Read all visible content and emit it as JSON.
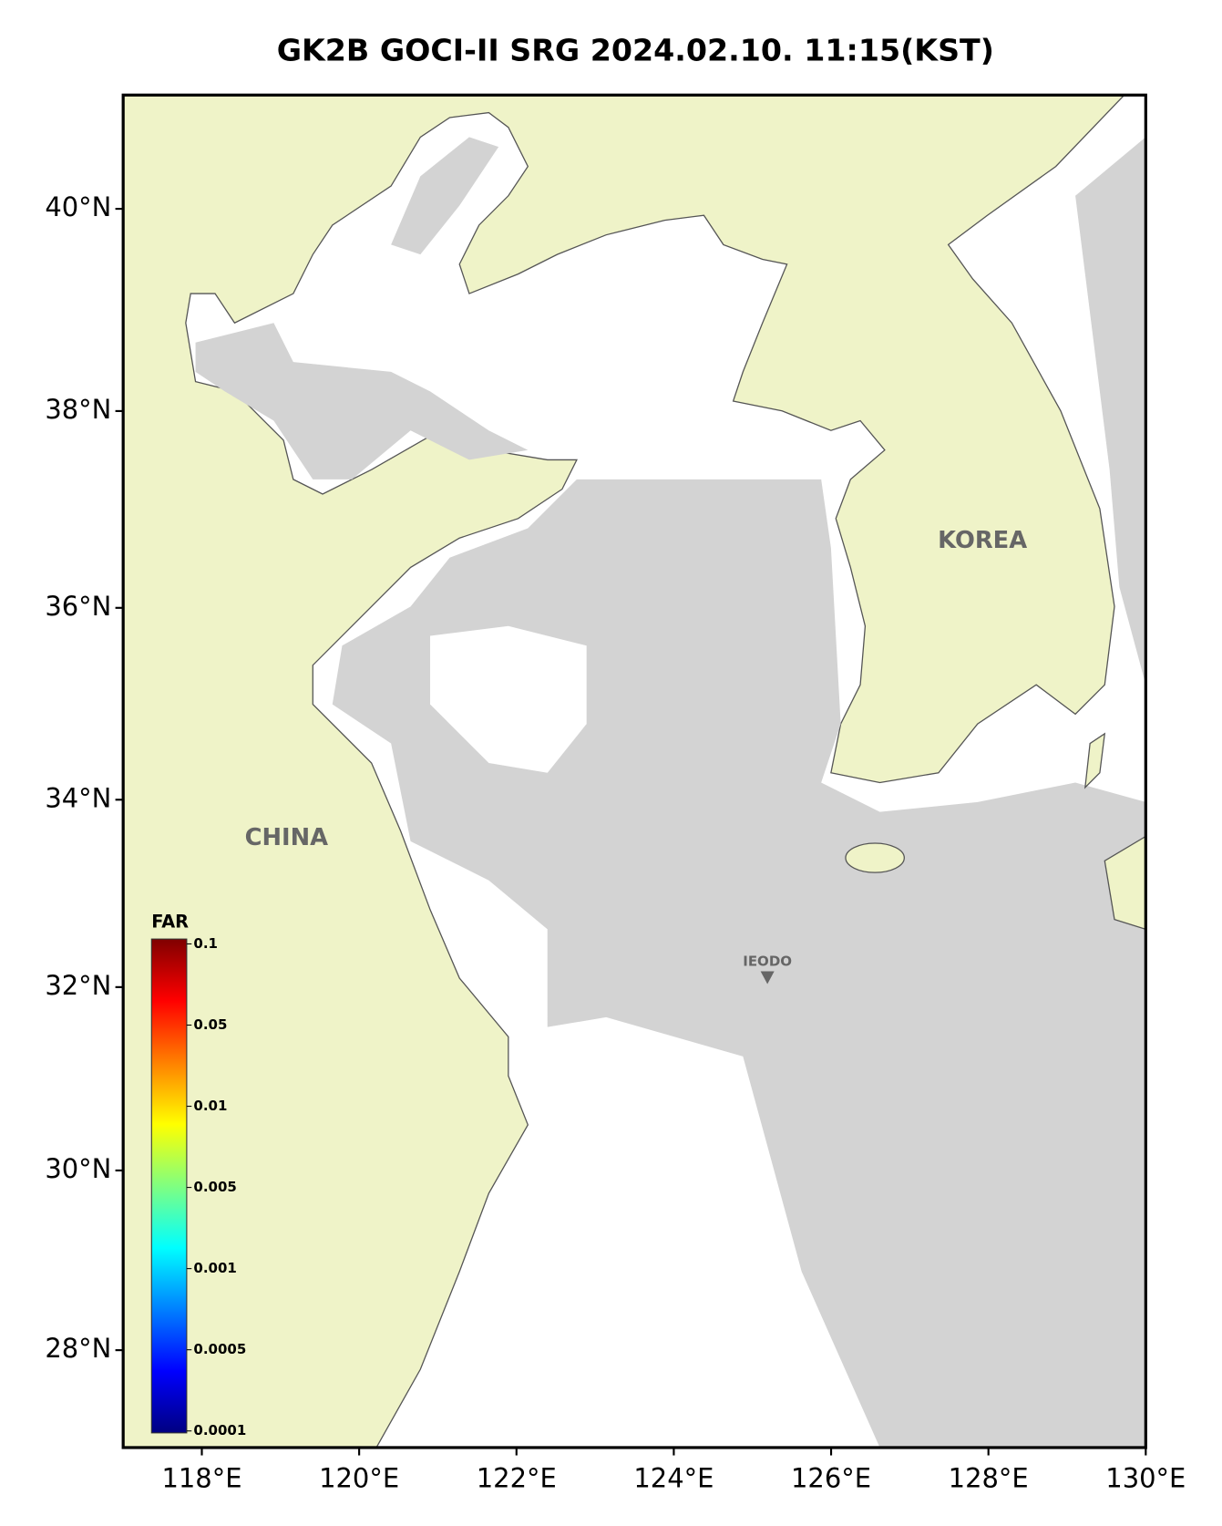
{
  "title": "GK2B GOCI-II SRG 2024.02.10. 11:15(KST)",
  "map": {
    "projection": "mercator",
    "xlim": [
      117,
      130
    ],
    "ylim": [
      26.9,
      41.1
    ],
    "xticks": [
      {
        "value": 118,
        "label": "118°E"
      },
      {
        "value": 120,
        "label": "120°E"
      },
      {
        "value": 122,
        "label": "122°E"
      },
      {
        "value": 124,
        "label": "124°E"
      },
      {
        "value": 126,
        "label": "126°E"
      },
      {
        "value": 128,
        "label": "128°E"
      },
      {
        "value": 130,
        "label": "130°E"
      }
    ],
    "yticks": [
      {
        "value": 28,
        "label": "28°N"
      },
      {
        "value": 30,
        "label": "30°N"
      },
      {
        "value": 32,
        "label": "32°N"
      },
      {
        "value": 34,
        "label": "34°N"
      },
      {
        "value": 36,
        "label": "36°N"
      },
      {
        "value": 38,
        "label": "38°N"
      },
      {
        "value": 40,
        "label": "40°N"
      }
    ]
  },
  "labels": {
    "china": "CHINA",
    "korea": "KOREA",
    "ieodo": "IEODO"
  },
  "colorbar": {
    "title": "FAR",
    "scale": "log",
    "ticks": [
      0.1,
      0.05,
      0.01,
      0.005,
      0.001,
      0.0005,
      0.0001
    ],
    "colors": [
      "#800000",
      "#ff0000",
      "#ff8000",
      "#ffff00",
      "#80ff80",
      "#00ffff",
      "#0080ff",
      "#0000ff",
      "#000080"
    ]
  }
}
